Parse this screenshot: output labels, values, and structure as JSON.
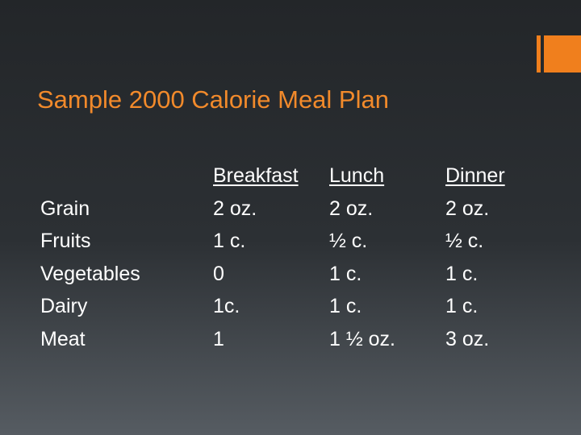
{
  "slide": {
    "title": "Sample 2000 Calorie Meal Plan",
    "accent_color": "#f07f1d",
    "title_color": "#f28a2b",
    "background_colors": [
      "#232629",
      "#565c62"
    ]
  },
  "table": {
    "columns": [
      "",
      "Breakfast",
      "Lunch",
      "Dinner"
    ],
    "rows": [
      {
        "label": "Grain",
        "breakfast": "2 oz.",
        "lunch": "2 oz.",
        "dinner": "2 oz."
      },
      {
        "label": "Fruits",
        "breakfast": "1 c.",
        "lunch": "½ c.",
        "dinner": "½ c."
      },
      {
        "label": "Vegetables",
        "breakfast": "0",
        "lunch": "1 c.",
        "dinner": "1 c."
      },
      {
        "label": "Dairy",
        "breakfast": "1c.",
        "lunch": "1 c.",
        "dinner": "1 c."
      },
      {
        "label": "Meat",
        "breakfast": "1",
        "lunch": "1 ½ oz.",
        "dinner": "3 oz."
      }
    ]
  }
}
